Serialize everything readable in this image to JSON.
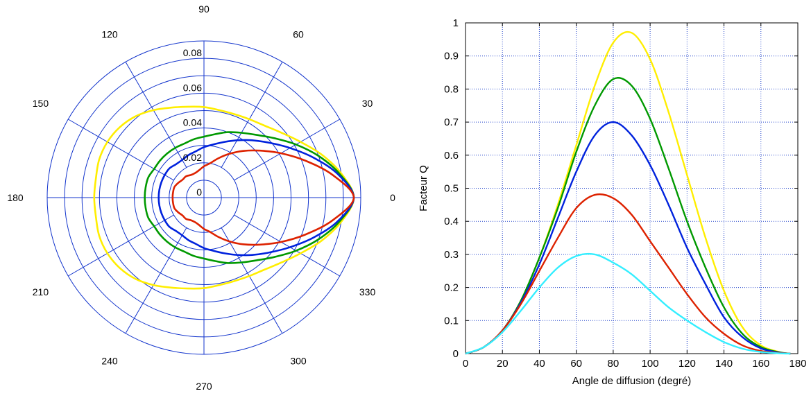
{
  "chart_data": [
    {
      "type": "polar",
      "title": "",
      "r_max": 0.09,
      "r_ticks": [
        0,
        0.02,
        0.04,
        0.06,
        0.08
      ],
      "r_tick_labels": [
        "0",
        "0.02",
        "0.04",
        "0.06",
        "0.08"
      ],
      "angle_ticks": [
        0,
        30,
        60,
        90,
        120,
        150,
        180,
        210,
        240,
        270,
        300,
        330
      ],
      "angle_tick_labels": [
        "0",
        "30",
        "60",
        "90",
        "120",
        "150",
        "180",
        "210",
        "240",
        "270",
        "300",
        "330"
      ],
      "rings": 9,
      "grid": true,
      "theta_deg": [
        0,
        10,
        20,
        30,
        40,
        50,
        60,
        70,
        80,
        90,
        100,
        110,
        120,
        130,
        140,
        150,
        160,
        170,
        180
      ],
      "series": [
        {
          "color": "#ffee00",
          "r": [
            0.086,
            0.08,
            0.072,
            0.064,
            0.058,
            0.054,
            0.052,
            0.051,
            0.051,
            0.052,
            0.053,
            0.055,
            0.058,
            0.061,
            0.063,
            0.064,
            0.064,
            0.063,
            0.063
          ]
        },
        {
          "color": "#009900",
          "r": [
            0.086,
            0.079,
            0.07,
            0.061,
            0.053,
            0.047,
            0.043,
            0.04,
            0.037,
            0.035,
            0.034,
            0.033,
            0.033,
            0.033,
            0.033,
            0.033,
            0.034,
            0.034,
            0.034
          ]
        },
        {
          "color": "#0022dd",
          "r": [
            0.086,
            0.078,
            0.067,
            0.057,
            0.049,
            0.043,
            0.038,
            0.034,
            0.031,
            0.029,
            0.027,
            0.026,
            0.025,
            0.025,
            0.026,
            0.026,
            0.026,
            0.026,
            0.026
          ]
        },
        {
          "color": "#dd2200",
          "r": [
            0.086,
            0.075,
            0.062,
            0.051,
            0.042,
            0.035,
            0.029,
            0.024,
            0.02,
            0.018,
            0.016,
            0.015,
            0.015,
            0.016,
            0.016,
            0.017,
            0.018,
            0.018,
            0.018
          ]
        }
      ]
    },
    {
      "type": "line",
      "title": "",
      "xlabel": "Angle de diffusion (degré)",
      "ylabel": "Facteur Q",
      "xlim": [
        0,
        180
      ],
      "ylim": [
        0,
        1
      ],
      "x_ticks": [
        0,
        20,
        40,
        60,
        80,
        100,
        120,
        140,
        160,
        180
      ],
      "y_ticks": [
        0,
        0.1,
        0.2,
        0.3,
        0.4,
        0.5,
        0.6,
        0.7,
        0.8,
        0.9,
        1
      ],
      "x_tick_labels": [
        "0",
        "20",
        "40",
        "60",
        "80",
        "100",
        "120",
        "140",
        "160",
        "180"
      ],
      "y_tick_labels": [
        "0",
        "0.1",
        "0.2",
        "0.3",
        "0.4",
        "0.5",
        "0.6",
        "0.7",
        "0.8",
        "0.9",
        "1"
      ],
      "grid": true,
      "grid_style": "dotted",
      "x": [
        0,
        10,
        20,
        30,
        40,
        50,
        60,
        70,
        80,
        90,
        100,
        110,
        120,
        130,
        140,
        150,
        160,
        170,
        176
      ],
      "series": [
        {
          "color": "#ffee00",
          "values": [
            0,
            0.02,
            0.07,
            0.16,
            0.29,
            0.45,
            0.63,
            0.81,
            0.94,
            0.97,
            0.89,
            0.73,
            0.54,
            0.35,
            0.19,
            0.08,
            0.025,
            0.005,
            0
          ]
        },
        {
          "color": "#009900",
          "values": [
            0,
            0.02,
            0.07,
            0.16,
            0.29,
            0.44,
            0.61,
            0.75,
            0.83,
            0.81,
            0.71,
            0.56,
            0.4,
            0.26,
            0.14,
            0.06,
            0.02,
            0.004,
            0
          ]
        },
        {
          "color": "#0022dd",
          "values": [
            0,
            0.02,
            0.07,
            0.155,
            0.27,
            0.41,
            0.55,
            0.66,
            0.7,
            0.66,
            0.57,
            0.45,
            0.32,
            0.21,
            0.11,
            0.05,
            0.016,
            0.003,
            0
          ]
        },
        {
          "color": "#dd2200",
          "values": [
            0,
            0.02,
            0.07,
            0.15,
            0.25,
            0.35,
            0.44,
            0.48,
            0.47,
            0.42,
            0.34,
            0.26,
            0.18,
            0.11,
            0.06,
            0.025,
            0.008,
            0.002,
            0
          ]
        },
        {
          "color": "#33eeff",
          "values": [
            0,
            0.02,
            0.065,
            0.13,
            0.2,
            0.26,
            0.295,
            0.3,
            0.275,
            0.24,
            0.19,
            0.14,
            0.1,
            0.065,
            0.035,
            0.015,
            0.005,
            0.001,
            0
          ]
        }
      ]
    }
  ]
}
